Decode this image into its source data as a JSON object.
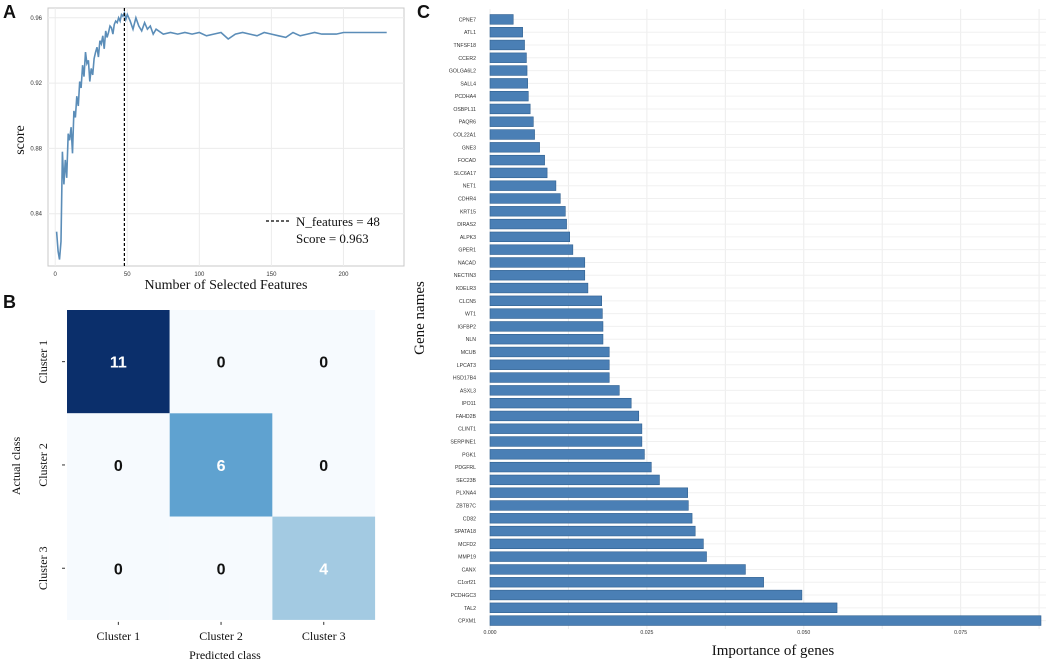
{
  "panels": {
    "a": "A",
    "b": "B",
    "c": "C"
  },
  "chart_data": [
    {
      "type": "line",
      "title": "",
      "xlabel": "Number of Selected Features",
      "ylabel": "score",
      "xlim": [
        -5,
        242
      ],
      "ylim": [
        0.808,
        0.966
      ],
      "xticks": [
        0,
        50,
        100,
        150,
        200
      ],
      "yticks": [
        0.84,
        0.88,
        0.92,
        0.96
      ],
      "ytick_labels": [
        "0.84",
        "0.88",
        "0.92",
        "0.96"
      ],
      "series": [
        {
          "name": "score",
          "x": [
            1,
            2,
            3,
            4,
            5,
            6,
            7,
            8,
            9,
            10,
            11,
            12,
            13,
            14,
            15,
            16,
            17,
            18,
            19,
            20,
            21,
            22,
            23,
            24,
            25,
            26,
            27,
            28,
            29,
            30,
            31,
            32,
            33,
            34,
            35,
            36,
            37,
            38,
            39,
            40,
            41,
            42,
            43,
            44,
            45,
            46,
            47,
            48,
            49,
            50,
            52,
            54,
            56,
            58,
            60,
            62,
            64,
            66,
            68,
            70,
            75,
            80,
            85,
            90,
            95,
            100,
            105,
            110,
            115,
            120,
            125,
            130,
            135,
            140,
            145,
            150,
            155,
            160,
            165,
            170,
            175,
            180,
            185,
            190,
            195,
            200,
            205,
            210,
            215,
            220,
            225,
            230
          ],
          "y": [
            0.829,
            0.817,
            0.812,
            0.823,
            0.878,
            0.858,
            0.873,
            0.862,
            0.889,
            0.885,
            0.893,
            0.877,
            0.903,
            0.899,
            0.912,
            0.906,
            0.921,
            0.917,
            0.931,
            0.924,
            0.939,
            0.932,
            0.934,
            0.921,
            0.929,
            0.925,
            0.935,
            0.939,
            0.942,
            0.936,
            0.946,
            0.944,
            0.949,
            0.941,
            0.952,
            0.948,
            0.951,
            0.955,
            0.954,
            0.95,
            0.956,
            0.958,
            0.957,
            0.96,
            0.958,
            0.962,
            0.961,
            0.963,
            0.959,
            0.962,
            0.958,
            0.953,
            0.96,
            0.955,
            0.952,
            0.957,
            0.953,
            0.955,
            0.95,
            0.953,
            0.95,
            0.951,
            0.95,
            0.951,
            0.95,
            0.951,
            0.949,
            0.95,
            0.951,
            0.947,
            0.95,
            0.951,
            0.95,
            0.949,
            0.951,
            0.95,
            0.949,
            0.948,
            0.951,
            0.949,
            0.95,
            0.951,
            0.95,
            0.95,
            0.95,
            0.951,
            0.951,
            0.951,
            0.951,
            0.951,
            0.951,
            0.951
          ]
        }
      ],
      "annotation": {
        "x": 48,
        "legend_line1": "N_features = 48",
        "legend_line2": "Score = 0.963",
        "line_color": "#000000"
      },
      "line_color": "#5b8db8"
    },
    {
      "type": "heatmap",
      "title": "",
      "xlabel": "Predicted class",
      "ylabel": "Actual class",
      "x_categories": [
        "Cluster 1",
        "Cluster 2",
        "Cluster 3"
      ],
      "y_categories": [
        "Cluster 1",
        "Cluster 2",
        "Cluster 3"
      ],
      "values": [
        [
          11,
          0,
          0
        ],
        [
          0,
          6,
          0
        ],
        [
          0,
          0,
          4
        ]
      ],
      "cell_labels": [
        [
          "11",
          "0",
          "0"
        ],
        [
          "0",
          "6",
          "0"
        ],
        [
          "0",
          "0",
          "4"
        ]
      ],
      "colors": [
        [
          "#0b2f6b",
          "#f6fafe",
          "#f6fafe"
        ],
        [
          "#f6fafe",
          "#5fa2d0",
          "#f6fafe"
        ],
        [
          "#f6fafe",
          "#f6fafe",
          "#a3cae2"
        ]
      ],
      "label_colors": [
        [
          "#ffffff",
          "#111111",
          "#111111"
        ],
        [
          "#111111",
          "#ffffff",
          "#111111"
        ],
        [
          "#111111",
          "#111111",
          "#ffffff"
        ]
      ]
    },
    {
      "type": "bar",
      "orientation": "horizontal",
      "title": "",
      "xlabel": "Importance of genes",
      "ylabel": "Gene names",
      "xlim": [
        0,
        0.0886
      ],
      "xticks": [
        0,
        0.025,
        0.05,
        0.075
      ],
      "xtick_labels": [
        "0.000",
        "0.025",
        "0.050",
        "0.075"
      ],
      "bar_color": "#4a7fb5",
      "categories": [
        "CPNE7",
        "ATL1",
        "TNFSF18",
        "CCER2",
        "GOLGA6L2",
        "SALL4",
        "PCDHA4",
        "OSBPL11",
        "PAQR6",
        "COL22A1",
        "GNE3",
        "FOCAD",
        "SLC6A17",
        "NET1",
        "CDHR4",
        "KRT15",
        "DIRAS2",
        "ALPK3",
        "GPER1",
        "NACAD",
        "NECTIN3",
        "KDELR3",
        "CLCN5",
        "WT1",
        "IGFBP2",
        "NLN",
        "MCUB",
        "LPCAT3",
        "HSD17B4",
        "ASXL3",
        "IPO11",
        "FAHD2B",
        "CLINT1",
        "SERPINE1",
        "PGK1",
        "PDGFRL",
        "SEC23B",
        "PLXNA4",
        "ZBTB7C",
        "CD82",
        "SPATA18",
        "MCFD2",
        "MMP19",
        "CANX",
        "C1orf21",
        "PCDHGC3",
        "TAL2",
        "CPXM1"
      ],
      "values": [
        0.0037,
        0.0052,
        0.0055,
        0.0058,
        0.0059,
        0.006,
        0.0061,
        0.0064,
        0.0069,
        0.0071,
        0.0079,
        0.0087,
        0.0091,
        0.0105,
        0.0112,
        0.012,
        0.0122,
        0.0127,
        0.0132,
        0.0151,
        0.0151,
        0.0156,
        0.0178,
        0.0179,
        0.018,
        0.018,
        0.019,
        0.019,
        0.019,
        0.0206,
        0.0225,
        0.0237,
        0.0242,
        0.0242,
        0.0246,
        0.0257,
        0.027,
        0.0315,
        0.0316,
        0.0322,
        0.0327,
        0.034,
        0.0345,
        0.0407,
        0.0436,
        0.0497,
        0.0553,
        0.0878
      ]
    }
  ]
}
